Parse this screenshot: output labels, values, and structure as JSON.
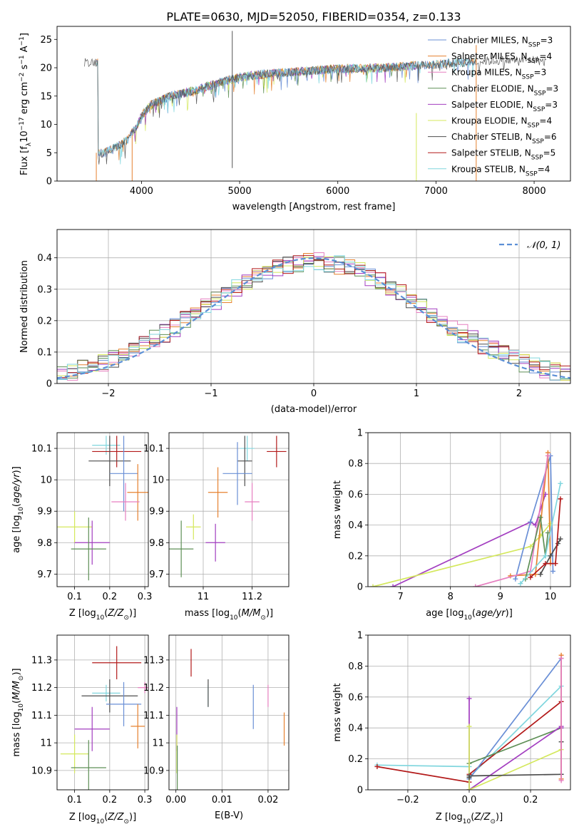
{
  "figure": {
    "title": "PLATE=0630, MJD=52050, FIBERID=0354, z=0.133"
  },
  "colors": {
    "Chabrier MILES": "#6a8fd6",
    "Salpeter MILES": "#e6812f",
    "Kroupa MILES": "#e67fc0",
    "Chabrier ELODIE": "#5e8f56",
    "Salpeter ELODIE": "#a33ec0",
    "Kroupa ELODIE": "#d4e85c",
    "Chabrier STELIB": "#4d4d4d",
    "Salpeter STELIB": "#b31a1a",
    "Kroupa STELIB": "#80d6de",
    "normal": "#5b8fd6"
  },
  "chart_data": [
    {
      "id": "spectrum",
      "type": "line",
      "xlabel": "wavelength [Angstrom, rest frame]",
      "ylabel_text": "Flux [fλ10−17 erg cm−2 s−1 A−1]",
      "xlim": [
        3140,
        8370
      ],
      "ylim": [
        0,
        27.3
      ],
      "xticks": [
        4000,
        5000,
        6000,
        7000,
        8000
      ],
      "yticks": [
        0,
        5,
        10,
        15,
        20,
        25
      ],
      "grid": false,
      "legend_placement": "right",
      "legend": [
        {
          "label": "Chabrier MILES, N",
          "sub": "SSP",
          "val": "=3",
          "series": "Chabrier MILES"
        },
        {
          "label": "Salpeter MILES, N",
          "sub": "SSP",
          "val": "=4",
          "series": "Salpeter MILES"
        },
        {
          "label": "Kroupa MILES, N",
          "sub": "SSP",
          "val": "=3",
          "series": "Kroupa MILES"
        },
        {
          "label": "Chabrier ELODIE, N",
          "sub": "SSP",
          "val": "=3",
          "series": "Chabrier ELODIE"
        },
        {
          "label": "Salpeter ELODIE, N",
          "sub": "SSP",
          "val": "=3",
          "series": "Salpeter ELODIE"
        },
        {
          "label": "Kroupa ELODIE, N",
          "sub": "SSP",
          "val": "=4",
          "series": "Kroupa ELODIE"
        },
        {
          "label": "Chabrier STELIB, N",
          "sub": "SSP",
          "val": "=6",
          "series": "Chabrier STELIB"
        },
        {
          "label": "Salpeter STELIB, N",
          "sub": "SSP",
          "val": "=5",
          "series": "Salpeter STELIB"
        },
        {
          "label": "Kroupa STELIB, N",
          "sub": "SSP",
          "val": "=4",
          "series": "Kroupa STELIB"
        }
      ],
      "continuum": [
        [
          3560,
          4.8
        ],
        [
          3650,
          5.2
        ],
        [
          3750,
          6.1
        ],
        [
          3850,
          7.2
        ],
        [
          3950,
          9.6
        ],
        [
          4000,
          11.5
        ],
        [
          4100,
          13.5
        ],
        [
          4300,
          15.0
        ],
        [
          4500,
          15.8
        ],
        [
          4800,
          17.4
        ],
        [
          5000,
          18.3
        ],
        [
          5200,
          18.8
        ],
        [
          5500,
          19.2
        ],
        [
          6000,
          19.8
        ],
        [
          6500,
          20.0
        ],
        [
          7000,
          20.6
        ],
        [
          7500,
          21.2
        ],
        [
          8000,
          21.4
        ],
        [
          8130,
          21.0
        ]
      ],
      "series_ranges": {
        "Chabrier STELIB": [
          3420,
          8130
        ],
        "Chabrier MILES": [
          3540,
          7410
        ],
        "Kroupa STELIB": [
          3540,
          7410
        ],
        "Salpeter MILES": [
          3540,
          7410
        ],
        "Chabrier ELODIE": [
          3900,
          6800
        ],
        "Kroupa ELODIE": [
          3900,
          6800
        ],
        "Salpeter ELODIE": [
          3900,
          6800
        ]
      },
      "sharp_lines": [
        {
          "x": 4925,
          "y0": 2.3,
          "y1": 26.5
        },
        {
          "x": 6800,
          "y0": 0,
          "y1": 12.0
        },
        {
          "x": 7410,
          "y0": 0,
          "y1": 24.0
        },
        {
          "x": 3540,
          "y0": 0,
          "y1": 5.0
        },
        {
          "x": 3905,
          "y0": 0,
          "y1": 8.0
        }
      ]
    },
    {
      "id": "residuals",
      "type": "histogram",
      "xlabel": "(data-model)/error",
      "ylabel": "Normed distribution",
      "xlim": [
        -2.5,
        2.5
      ],
      "ylim": [
        0,
        0.49
      ],
      "xticks": [
        -2,
        -1,
        0,
        1,
        2
      ],
      "xtick_labels": [
        "−2",
        "−1",
        "0",
        "1",
        "2"
      ],
      "yticks": [
        0,
        0.1,
        0.2,
        0.3,
        0.4
      ],
      "grid": true,
      "legend": "𝒩(0, 1)",
      "legend_placement": "top-right",
      "bin_width": 0.1
    },
    {
      "id": "age_vs_Z",
      "type": "errorbar",
      "xlabel": "Z [log10(Z/Z⊙)]",
      "ylabel": "age  [log10(age/yr)]",
      "xlim": [
        0.05,
        0.31
      ],
      "ylim": [
        9.66,
        10.15
      ],
      "xticks": [
        0.1,
        0.2,
        0.3
      ],
      "yticks": [
        9.7,
        9.8,
        9.9,
        10.0,
        10.1
      ],
      "grid": true,
      "points": [
        {
          "series": "Kroupa STELIB",
          "x": 0.19,
          "xerr": 0.04,
          "y": 10.11,
          "yerr": 0.03
        },
        {
          "series": "Salpeter STELIB",
          "x": 0.22,
          "xerr": 0.07,
          "y": 10.09,
          "yerr": 0.05
        },
        {
          "series": "Chabrier STELIB",
          "x": 0.2,
          "xerr": 0.06,
          "y": 10.06,
          "yerr": 0.08
        },
        {
          "series": "Chabrier MILES",
          "x": 0.24,
          "xerr": 0.04,
          "y": 10.02,
          "yerr": 0.12
        },
        {
          "series": "Salpeter MILES",
          "x": 0.28,
          "xerr": 0.03,
          "y": 9.96,
          "yerr": 0.09
        },
        {
          "series": "Kroupa MILES",
          "x": 0.245,
          "xerr": 0.04,
          "y": 9.93,
          "yerr": 0.06
        },
        {
          "series": "Kroupa ELODIE",
          "x": 0.1,
          "xerr": 0.05,
          "y": 9.85,
          "yerr": 0.05
        },
        {
          "series": "Salpeter ELODIE",
          "x": 0.15,
          "xerr": 0.05,
          "y": 9.8,
          "yerr": 0.07
        },
        {
          "series": "Chabrier ELODIE",
          "x": 0.14,
          "xerr": 0.05,
          "y": 9.78,
          "yerr": 0.1
        }
      ]
    },
    {
      "id": "age_vs_mass",
      "type": "errorbar",
      "xlabel": "mass [log10(M/M⊙)]",
      "xlim": [
        10.86,
        11.35
      ],
      "ylim": [
        9.66,
        10.15
      ],
      "xticks": [
        11.0,
        11.2
      ],
      "yticks": [
        9.7,
        9.8,
        9.9,
        10.0,
        10.1
      ],
      "grid": true,
      "points": [
        {
          "series": "Kroupa STELIB",
          "x": 11.18,
          "xerr": 0.03,
          "y": 10.1,
          "yerr": 0.04
        },
        {
          "series": "Salpeter STELIB",
          "x": 11.3,
          "xerr": 0.04,
          "y": 10.09,
          "yerr": 0.05
        },
        {
          "series": "Chabrier STELIB",
          "x": 11.17,
          "xerr": 0.03,
          "y": 10.06,
          "yerr": 0.08
        },
        {
          "series": "Chabrier MILES",
          "x": 11.14,
          "xerr": 0.06,
          "y": 10.02,
          "yerr": 0.1
        },
        {
          "series": "Salpeter MILES",
          "x": 11.06,
          "xerr": 0.04,
          "y": 9.96,
          "yerr": 0.08
        },
        {
          "series": "Kroupa MILES",
          "x": 11.2,
          "xerr": 0.03,
          "y": 9.93,
          "yerr": 0.06
        },
        {
          "series": "Kroupa ELODIE",
          "x": 10.96,
          "xerr": 0.03,
          "y": 9.85,
          "yerr": 0.04
        },
        {
          "series": "Salpeter ELODIE",
          "x": 11.05,
          "xerr": 0.04,
          "y": 9.8,
          "yerr": 0.06
        },
        {
          "series": "Chabrier ELODIE",
          "x": 10.91,
          "xerr": 0.05,
          "y": 9.78,
          "yerr": 0.09
        }
      ]
    },
    {
      "id": "mass_weight_vs_age",
      "type": "line",
      "xlabel": "age  [log10(age/yr)]",
      "ylabel": "mass weight",
      "xlim": [
        6.35,
        10.4
      ],
      "ylim": [
        0,
        1.0
      ],
      "xticks": [
        7,
        8,
        9,
        10
      ],
      "yticks": [
        0,
        0.2,
        0.4,
        0.6,
        0.8,
        1.0
      ],
      "grid": true,
      "series": [
        {
          "name": "Salpeter ELODIE",
          "x": [
            6.85,
            9.6,
            9.7,
            9.9
          ],
          "y": [
            0.0,
            0.42,
            0.4,
            0.6
          ]
        },
        {
          "name": "Kroupa ELODIE",
          "x": [
            6.45,
            9.6,
            9.8,
            10.0
          ],
          "y": [
            0.0,
            0.26,
            0.33,
            0.41
          ]
        },
        {
          "name": "Chabrier MILES",
          "x": [
            9.3,
            9.6,
            10.0,
            10.05
          ],
          "y": [
            0.05,
            0.42,
            0.85,
            0.1
          ]
        },
        {
          "name": "Salpeter MILES",
          "x": [
            9.2,
            9.7,
            9.95,
            10.0
          ],
          "y": [
            0.07,
            0.08,
            0.87,
            0.15
          ]
        },
        {
          "name": "Kroupa MILES",
          "x": [
            8.5,
            9.6,
            9.95
          ],
          "y": [
            0.0,
            0.1,
            0.85
          ]
        },
        {
          "name": "Chabrier ELODIE",
          "x": [
            9.5,
            9.8,
            9.9,
            9.95
          ],
          "y": [
            0.05,
            0.45,
            0.2,
            0.35
          ]
        },
        {
          "name": "Chabrier STELIB",
          "x": [
            9.8,
            10.0,
            10.15,
            10.2
          ],
          "y": [
            0.08,
            0.2,
            0.28,
            0.31
          ]
        },
        {
          "name": "Salpeter STELIB",
          "x": [
            9.6,
            9.9,
            10.1,
            10.2
          ],
          "y": [
            0.06,
            0.15,
            0.15,
            0.57
          ]
        },
        {
          "name": "Kroupa STELIB",
          "x": [
            9.4,
            9.9,
            10.2
          ],
          "y": [
            0.02,
            0.2,
            0.67
          ]
        }
      ]
    },
    {
      "id": "mass_vs_Z",
      "type": "errorbar",
      "xlabel": "Z [log10(Z/Z⊙)]",
      "ylabel": "mass [log10(M/M⊙)]",
      "xlim": [
        0.05,
        0.31
      ],
      "ylim": [
        10.83,
        11.39
      ],
      "xticks": [
        0.1,
        0.2,
        0.3
      ],
      "yticks": [
        10.9,
        11.0,
        11.1,
        11.2,
        11.3
      ],
      "grid": true,
      "points": [
        {
          "series": "Salpeter STELIB",
          "x": 0.22,
          "xerr": 0.07,
          "y": 11.29,
          "yerr": 0.06
        },
        {
          "series": "Kroupa MILES",
          "x": 0.3,
          "xerr": 0.02,
          "y": 11.2,
          "yerr": 0.02
        },
        {
          "series": "Kroupa STELIB",
          "x": 0.19,
          "xerr": 0.04,
          "y": 11.18,
          "yerr": 0.03
        },
        {
          "series": "Chabrier STELIB",
          "x": 0.2,
          "xerr": 0.08,
          "y": 11.17,
          "yerr": 0.06
        },
        {
          "series": "Chabrier MILES",
          "x": 0.24,
          "xerr": 0.05,
          "y": 11.14,
          "yerr": 0.08
        },
        {
          "series": "Salpeter MILES",
          "x": 0.28,
          "xerr": 0.02,
          "y": 11.06,
          "yerr": 0.08
        },
        {
          "series": "Salpeter ELODIE",
          "x": 0.15,
          "xerr": 0.05,
          "y": 11.05,
          "yerr": 0.08
        },
        {
          "series": "Kroupa ELODIE",
          "x": 0.1,
          "xerr": 0.04,
          "y": 10.96,
          "yerr": 0.07
        },
        {
          "series": "Chabrier ELODIE",
          "x": 0.14,
          "xerr": 0.05,
          "y": 10.91,
          "yerr": 0.1
        }
      ]
    },
    {
      "id": "mass_vs_EBV",
      "type": "errorbar",
      "xlabel": "E(B-V)",
      "xlim": [
        -0.0015,
        0.0245
      ],
      "ylim": [
        10.83,
        11.39
      ],
      "xticks": [
        0.0,
        0.01,
        0.02
      ],
      "xtick_labels": [
        "0.00",
        "0.01",
        "0.02"
      ],
      "yticks": [
        10.9,
        11.0,
        11.1,
        11.2,
        11.3
      ],
      "grid": true,
      "points": [
        {
          "series": "Salpeter STELIB",
          "x": 0.0033,
          "y": 11.29,
          "yerr": 0.05
        },
        {
          "series": "Kroupa MILES",
          "x": 0.02,
          "y": 11.17,
          "yerr": 0.04
        },
        {
          "series": "Kroupa STELIB",
          "x": 0.007,
          "y": 11.17,
          "yerr": 0.04
        },
        {
          "series": "Chabrier MILES",
          "x": 0.0168,
          "y": 11.13,
          "yerr": 0.08
        },
        {
          "series": "Salpeter MILES",
          "x": 0.0235,
          "y": 11.05,
          "yerr": 0.06
        },
        {
          "series": "Chabrier STELIB",
          "x": 0.007,
          "y": 11.18,
          "yerr": 0.05
        },
        {
          "series": "Salpeter ELODIE",
          "x": 0.0002,
          "y": 11.05,
          "yerr": 0.08
        },
        {
          "series": "Kroupa ELODIE",
          "x": 0.0002,
          "y": 10.96,
          "yerr": 0.07
        },
        {
          "series": "Chabrier ELODIE",
          "x": 0.0003,
          "y": 10.91,
          "yerr": 0.08
        }
      ]
    },
    {
      "id": "mass_weight_vs_Z",
      "type": "line",
      "xlabel": "Z [log10(Z/Z⊙)]",
      "ylabel": "mass weight",
      "xlim": [
        -0.33,
        0.33
      ],
      "ylim": [
        0,
        1.0
      ],
      "xticks": [
        -0.2,
        0.0,
        0.2
      ],
      "xtick_labels": [
        "−0.2",
        "0.0",
        "0.2"
      ],
      "yticks": [
        0,
        0.2,
        0.4,
        0.6,
        0.8,
        1.0
      ],
      "grid": true,
      "series": [
        {
          "name": "Kroupa STELIB",
          "x": [
            -0.3,
            0.0,
            0.0,
            0.3
          ],
          "y": [
            0.16,
            0.15,
            0.08,
            0.67
          ]
        },
        {
          "name": "Salpeter STELIB",
          "x": [
            -0.3,
            0.0,
            0.0,
            0.3
          ],
          "y": [
            0.15,
            0.05,
            0.1,
            0.57
          ]
        },
        {
          "name": "Chabrier MILES",
          "x": [
            0.0,
            0.0,
            0.3,
            0.3
          ],
          "y": [
            0.0,
            0.07,
            0.85,
            0.1
          ]
        },
        {
          "name": "Chabrier ELODIE",
          "x": [
            0.0,
            0.0,
            0.3
          ],
          "y": [
            0.0,
            0.17,
            0.4
          ]
        },
        {
          "name": "Salpeter ELODIE",
          "x": [
            0.0,
            0.0,
            0.3,
            0.3
          ],
          "y": [
            0.59,
            0.0,
            0.41,
            0.4
          ]
        },
        {
          "name": "Kroupa ELODIE",
          "x": [
            0.0,
            0.0,
            0.3
          ],
          "y": [
            0.41,
            0.0,
            0.26
          ]
        },
        {
          "name": "Chabrier STELIB",
          "x": [
            0.0,
            0.0,
            0.3,
            0.3
          ],
          "y": [
            0.08,
            0.09,
            0.1,
            0.31
          ]
        },
        {
          "name": "Salpeter MILES",
          "x": [
            0.3,
            0.3
          ],
          "y": [
            0.07,
            0.87
          ]
        },
        {
          "name": "Kroupa MILES",
          "x": [
            0.3,
            0.3
          ],
          "y": [
            0.06,
            0.85
          ]
        }
      ]
    }
  ]
}
